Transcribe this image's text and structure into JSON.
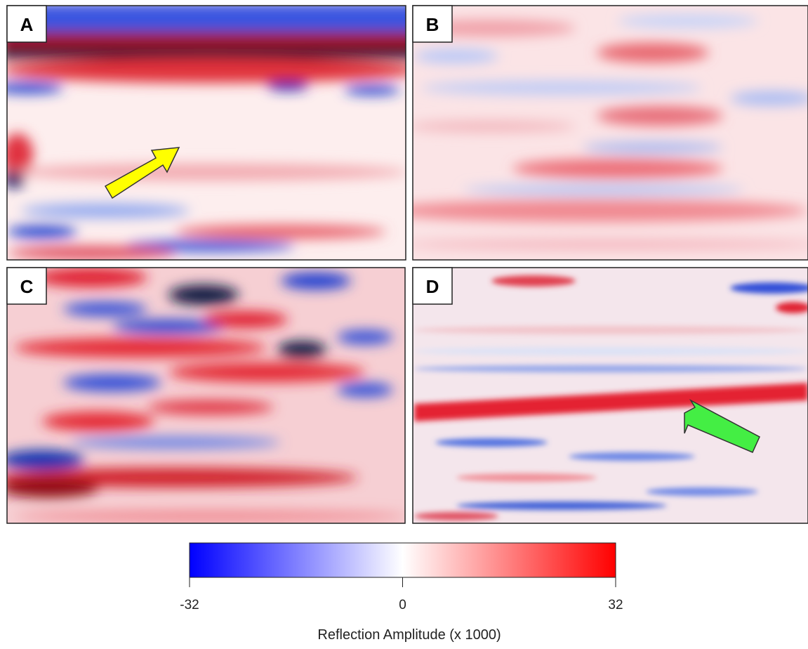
{
  "panels": [
    {
      "label": "A"
    },
    {
      "label": "B"
    },
    {
      "label": "C"
    },
    {
      "label": "D"
    }
  ],
  "colorbar": {
    "label": "Reflection Amplitude (x 1000)",
    "lim": [
      -32,
      32
    ],
    "ticks": [
      -32,
      0,
      32
    ]
  }
}
